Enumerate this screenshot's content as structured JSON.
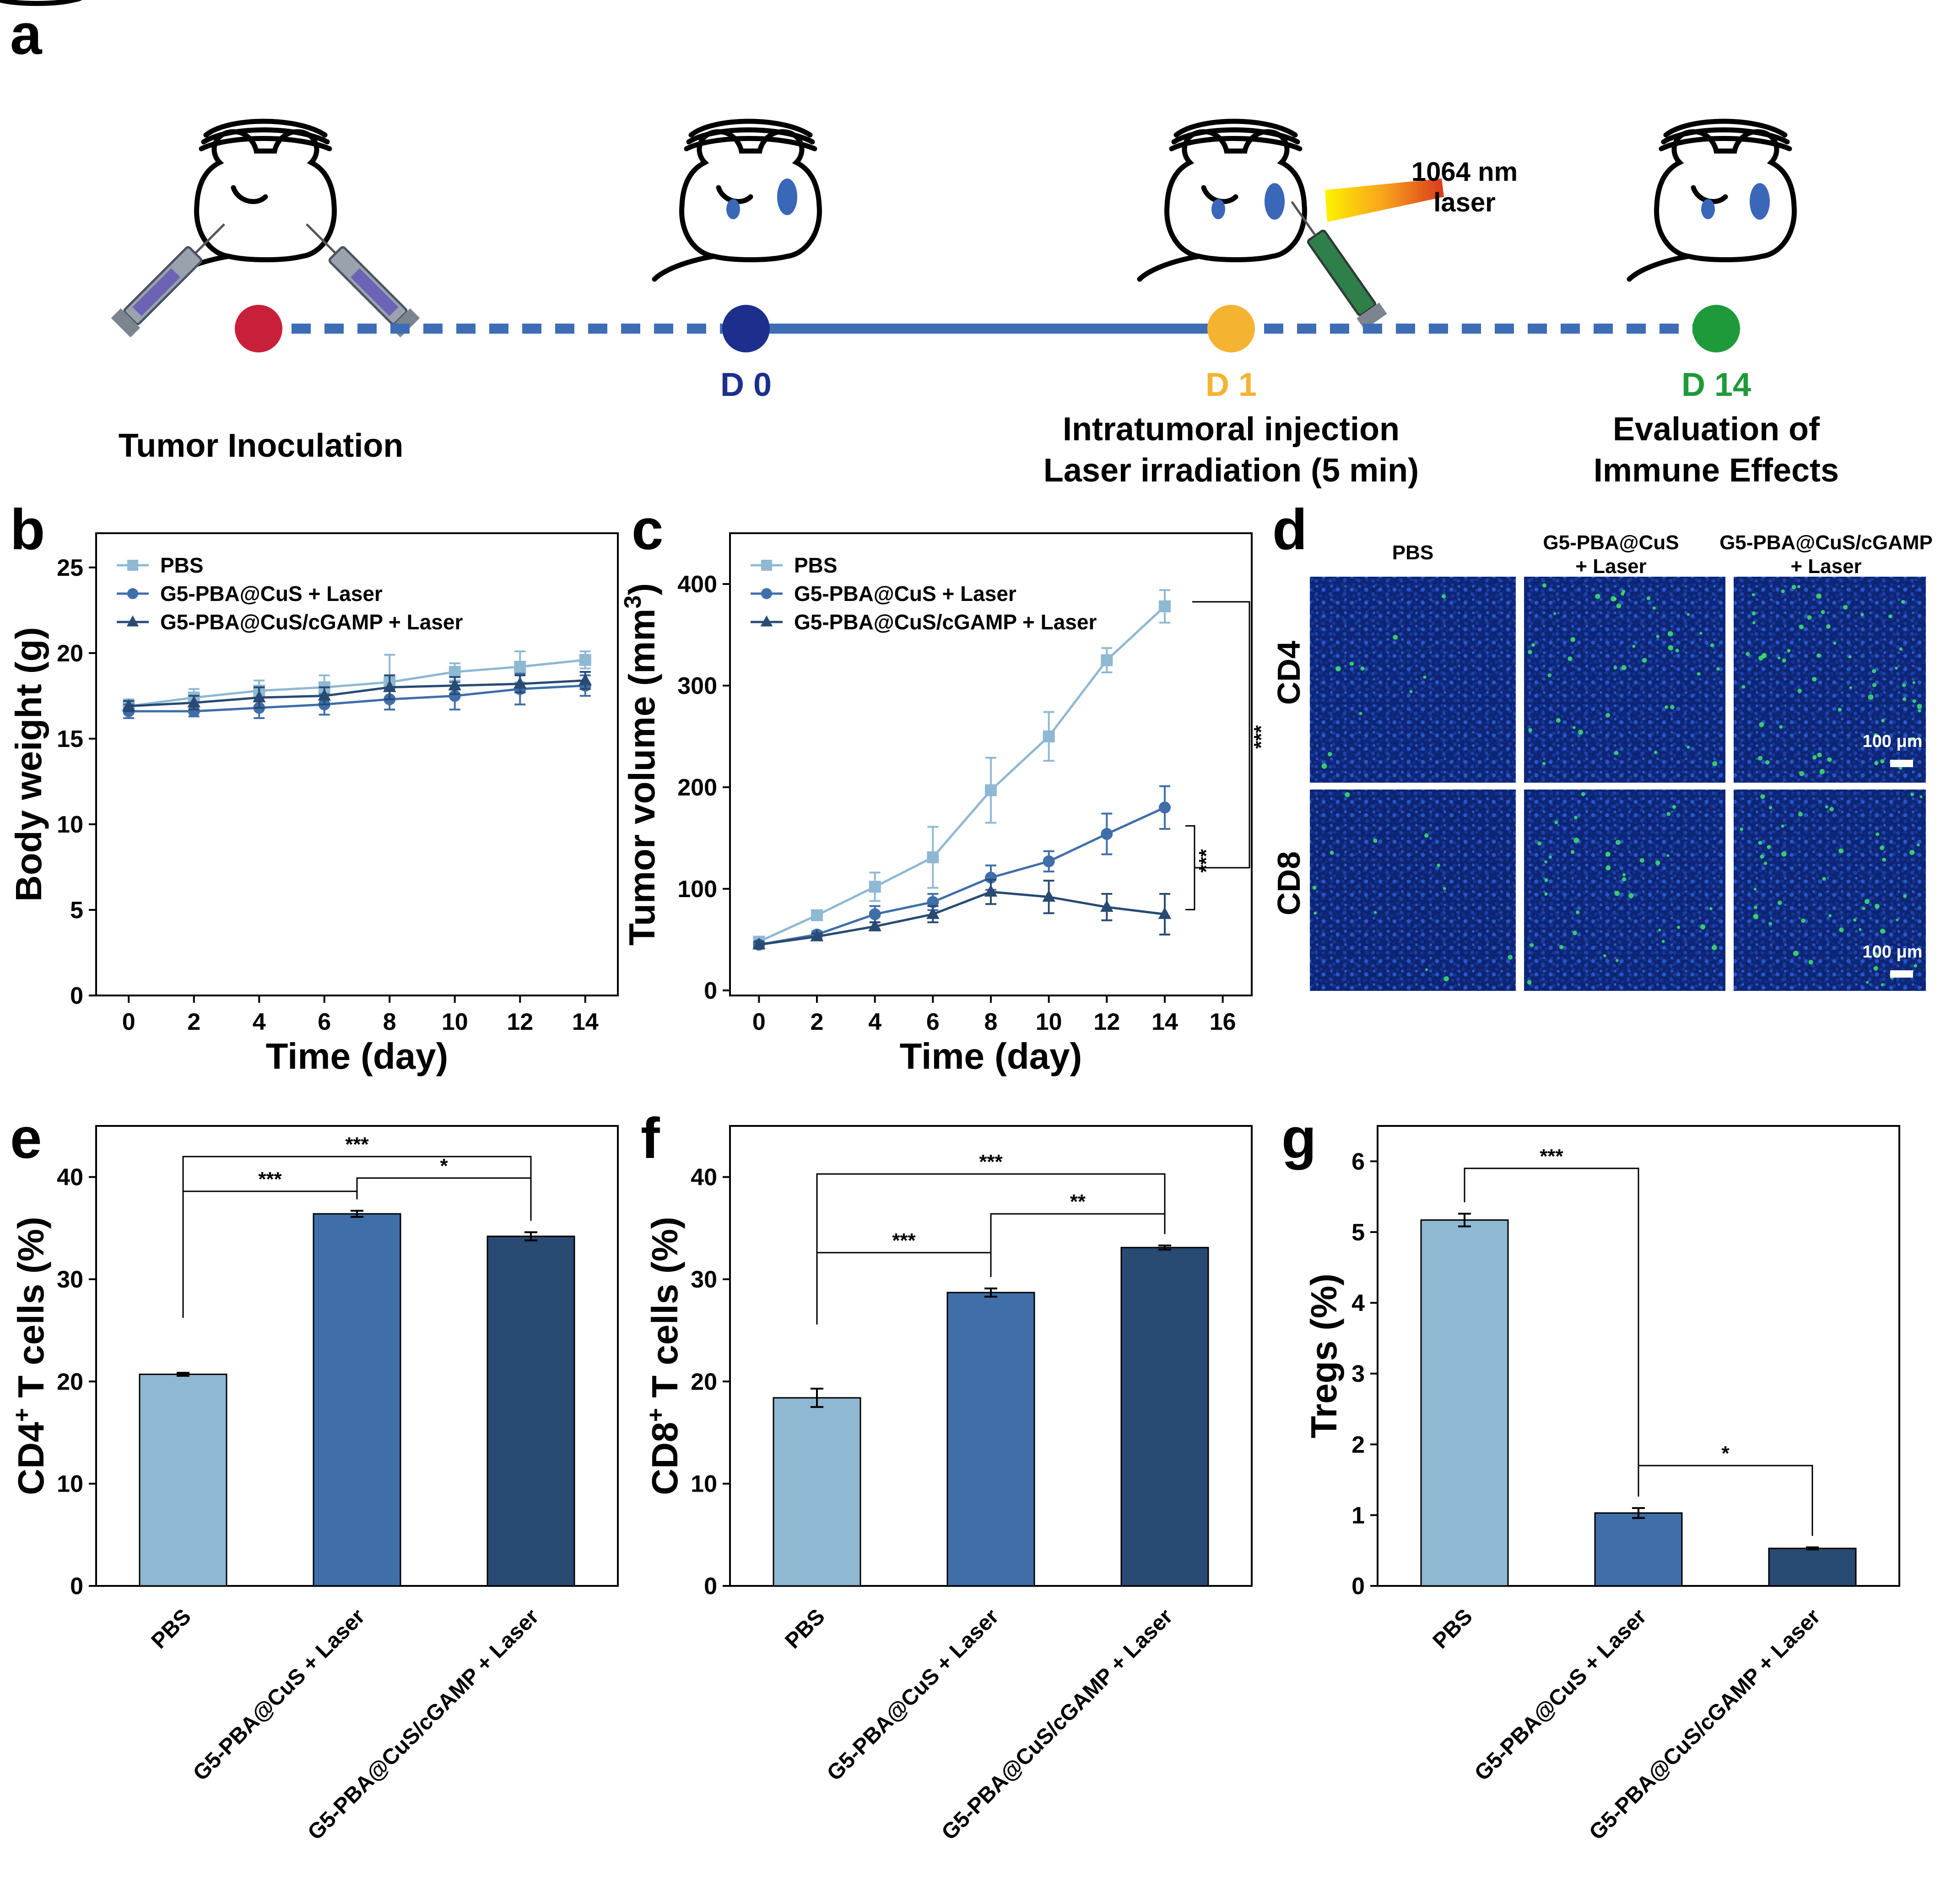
{
  "panel_letters": {
    "a": "a",
    "b": "b",
    "c": "c",
    "d": "d",
    "e": "e",
    "f": "f",
    "g": "g"
  },
  "colors": {
    "light": "#8fb8d3",
    "mid": "#3f6ea9",
    "dark": "#284a73",
    "timeline": "#3d6db5",
    "red": "#c8203a",
    "navy": "#1d2f8c",
    "yellow": "#f5b332",
    "green": "#1f9a3b"
  },
  "timeline": {
    "d0": "D 0",
    "d1": "D 1",
    "d14": "D 14",
    "tumor_inoculation": "Tumor Inoculation",
    "injection_line1": "Intratumoral injection",
    "injection_line2": "Laser irradiation (5 min)",
    "eval_line1": "Evaluation of",
    "eval_line2": "Immune Effects",
    "laser_line1": "1064 nm",
    "laser_line2": "laser"
  },
  "micrographs": {
    "col_pbs": "PBS",
    "col_g5_l1": "G5-PBA@CuS",
    "col_g5_l2": "+ Laser",
    "col_g5c_l1": "G5-PBA@CuS/cGAMP",
    "col_g5c_l2": "+ Laser",
    "row_cd4": "CD4",
    "row_cd8": "CD8",
    "scale_cd4": "100 μm",
    "scale_cd8": "100 μm"
  },
  "chart_data": [
    {
      "panel": "b",
      "type": "line",
      "xlabel": "Time (day)",
      "ylabel": "Body weight (g)",
      "xlim": [
        -1,
        15
      ],
      "ylim": [
        0,
        27
      ],
      "xticks": [
        "0",
        "2",
        "4",
        "6",
        "8",
        "10",
        "12",
        "14"
      ],
      "yticks": [
        "0",
        "5",
        "10",
        "15",
        "20",
        "25"
      ],
      "x": [
        0,
        2,
        4,
        6,
        8,
        10,
        12,
        14
      ],
      "legend_position": "top-left",
      "series": [
        {
          "name": "PBS",
          "marker": "square",
          "values": [
            16.9,
            17.4,
            17.8,
            18.0,
            18.3,
            18.9,
            19.2,
            19.6
          ],
          "errors": [
            0.4,
            0.5,
            0.6,
            0.7,
            1.6,
            0.5,
            0.9,
            0.5
          ]
        },
        {
          "name": "G5-PBA@CuS + Laser",
          "marker": "circle",
          "values": [
            16.6,
            16.6,
            16.8,
            17.0,
            17.3,
            17.5,
            17.9,
            18.1
          ],
          "errors": [
            0.4,
            0.3,
            0.6,
            0.6,
            0.6,
            0.8,
            0.9,
            0.6
          ]
        },
        {
          "name": "G5-PBA@CuS/cGAMP + Laser",
          "marker": "triangle",
          "values": [
            16.9,
            17.1,
            17.4,
            17.5,
            18.0,
            18.1,
            18.2,
            18.4
          ],
          "errors": [
            0.3,
            0.4,
            0.6,
            0.5,
            0.7,
            0.5,
            0.5,
            0.5
          ]
        }
      ]
    },
    {
      "panel": "c",
      "type": "line",
      "xlabel": "Time (day)",
      "ylabel": "Tumor volume (mm3)",
      "ylabel_main": "Tumor volume (mm",
      "ylabel_sup": "3",
      "ylabel_end": ")",
      "xlim": [
        -1,
        17
      ],
      "ylim": [
        -5,
        450
      ],
      "xticks": [
        "0",
        "2",
        "4",
        "6",
        "8",
        "10",
        "12",
        "14",
        "16"
      ],
      "yticks": [
        "0",
        "100",
        "200",
        "300",
        "400"
      ],
      "x": [
        0,
        2,
        4,
        6,
        8,
        10,
        12,
        14
      ],
      "legend_position": "top-left",
      "series": [
        {
          "name": "PBS",
          "marker": "square",
          "values": [
            48,
            74,
            102,
            131,
            197,
            250,
            325,
            378
          ],
          "errors": [
            4,
            4,
            14,
            30,
            32,
            24,
            12,
            16
          ]
        },
        {
          "name": "G5-PBA@CuS + Laser",
          "marker": "circle",
          "values": [
            45,
            55,
            75,
            87,
            111,
            127,
            154,
            180
          ],
          "errors": [
            3,
            3,
            8,
            8,
            12,
            10,
            20,
            21
          ]
        },
        {
          "name": "G5-PBA@CuS/cGAMP + Laser",
          "marker": "triangle",
          "values": [
            45,
            53,
            63,
            75,
            97,
            92,
            82,
            75
          ],
          "errors": [
            3,
            3,
            4,
            8,
            12,
            16,
            13,
            20
          ]
        }
      ],
      "significance": [
        "***",
        "***"
      ]
    },
    {
      "panel": "e",
      "type": "bar",
      "ylabel_main": "CD4",
      "ylabel_sup": "+",
      "ylabel_end": " T cells (%)",
      "ylim": [
        0,
        45
      ],
      "yticks": [
        "0",
        "10",
        "20",
        "30",
        "40"
      ],
      "categories": [
        "PBS",
        "G5-PBA@CuS + Laser",
        "G5-PBA@CuS/cGAMP + Laser"
      ],
      "values": [
        20.7,
        36.4,
        34.2
      ],
      "errors": [
        0.15,
        0.3,
        0.4
      ],
      "significance": [
        "***",
        "***",
        "*"
      ]
    },
    {
      "panel": "f",
      "type": "bar",
      "ylabel_main": "CD8",
      "ylabel_sup": "+",
      "ylabel_end": " T cells (%)",
      "ylim": [
        0,
        45
      ],
      "yticks": [
        "0",
        "10",
        "20",
        "30",
        "40"
      ],
      "categories": [
        "PBS",
        "G5-PBA@CuS + Laser",
        "G5-PBA@CuS/cGAMP + Laser"
      ],
      "values": [
        18.4,
        28.7,
        33.1
      ],
      "errors": [
        0.9,
        0.4,
        0.2
      ],
      "significance": [
        "***",
        "***",
        "**"
      ]
    },
    {
      "panel": "g",
      "type": "bar",
      "ylabel": "Tregs (%)",
      "ylim": [
        0,
        6.5
      ],
      "yticks": [
        "0",
        "1",
        "2",
        "3",
        "4",
        "5",
        "6"
      ],
      "categories": [
        "PBS",
        "G5-PBA@CuS + Laser",
        "G5-PBA@CuS/cGAMP + Laser"
      ],
      "values": [
        5.17,
        1.03,
        0.53
      ],
      "errors": [
        0.09,
        0.07,
        0.015
      ],
      "significance": [
        "***",
        "*"
      ]
    }
  ]
}
